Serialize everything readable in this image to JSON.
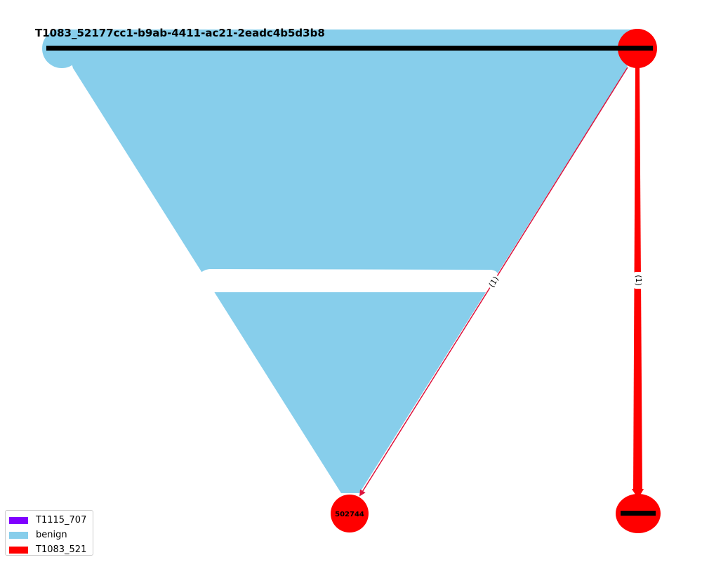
{
  "graph": {
    "title": "T1083_52177cc1-b9ab-4411-ac21-2eadc4b5d3b8",
    "nodes": {
      "top_left": {
        "color": "#87ceeb"
      },
      "top_right": {
        "color": "#ff0000"
      },
      "bottom_center": {
        "label": "502744",
        "color": "#ff0000"
      },
      "bottom_right": {
        "color": "#ff0000"
      }
    },
    "edges": {
      "fan_color": "#87ceeb",
      "thin_edge_label": "(1)",
      "thin_edge_color": "#dc143c",
      "thick_edge_label": "(1)",
      "thick_edge_color": "#ff0000"
    }
  },
  "legend": {
    "items": [
      {
        "label": "T1115_707",
        "color": "#8000ff"
      },
      {
        "label": "benign",
        "color": "#87ceeb"
      },
      {
        "label": "T1083_521",
        "color": "#ff0000"
      }
    ]
  }
}
